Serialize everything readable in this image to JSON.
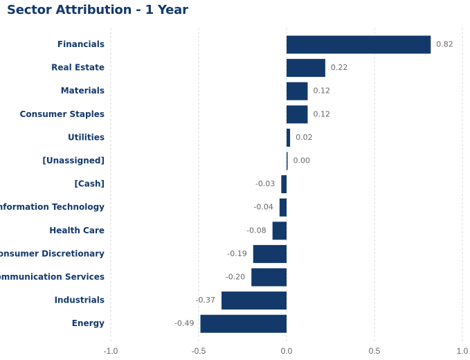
{
  "title": "Sector Attribution - 1 Year",
  "colors": {
    "bar": "#13396b",
    "title": "#13396b",
    "label": "#13396b",
    "value": "#666666",
    "grid": "#d9d9d9"
  },
  "chart_data": {
    "type": "bar",
    "orientation": "horizontal",
    "categories": [
      "Financials",
      "Real Estate",
      "Materials",
      "Consumer Staples",
      "Utilities",
      "[Unassigned]",
      "[Cash]",
      "Information Technology",
      "Health Care",
      "Consumer Discretionary",
      "Communication Services",
      "Industrials",
      "Energy"
    ],
    "values": [
      0.82,
      0.22,
      0.12,
      0.12,
      0.02,
      0.0,
      -0.03,
      -0.04,
      -0.08,
      -0.19,
      -0.2,
      -0.37,
      -0.49
    ],
    "value_labels": [
      "0.82",
      "0.22",
      "0.12",
      "0.12",
      "0.02",
      "0.00",
      "-0.03",
      "-0.04",
      "-0.08",
      "-0.19",
      "-0.20",
      "-0.37",
      "-0.49"
    ],
    "x_ticks": [
      -1.0,
      -0.5,
      0.0,
      0.5,
      1.0
    ],
    "x_tick_labels": [
      "-1.0",
      "-0.5",
      "0.0",
      "0.5",
      "1.0"
    ],
    "xlim": [
      -1.0,
      1.0
    ],
    "title": "Sector Attribution - 1 Year",
    "xlabel": "",
    "ylabel": "",
    "grid": "vertical dashed"
  }
}
